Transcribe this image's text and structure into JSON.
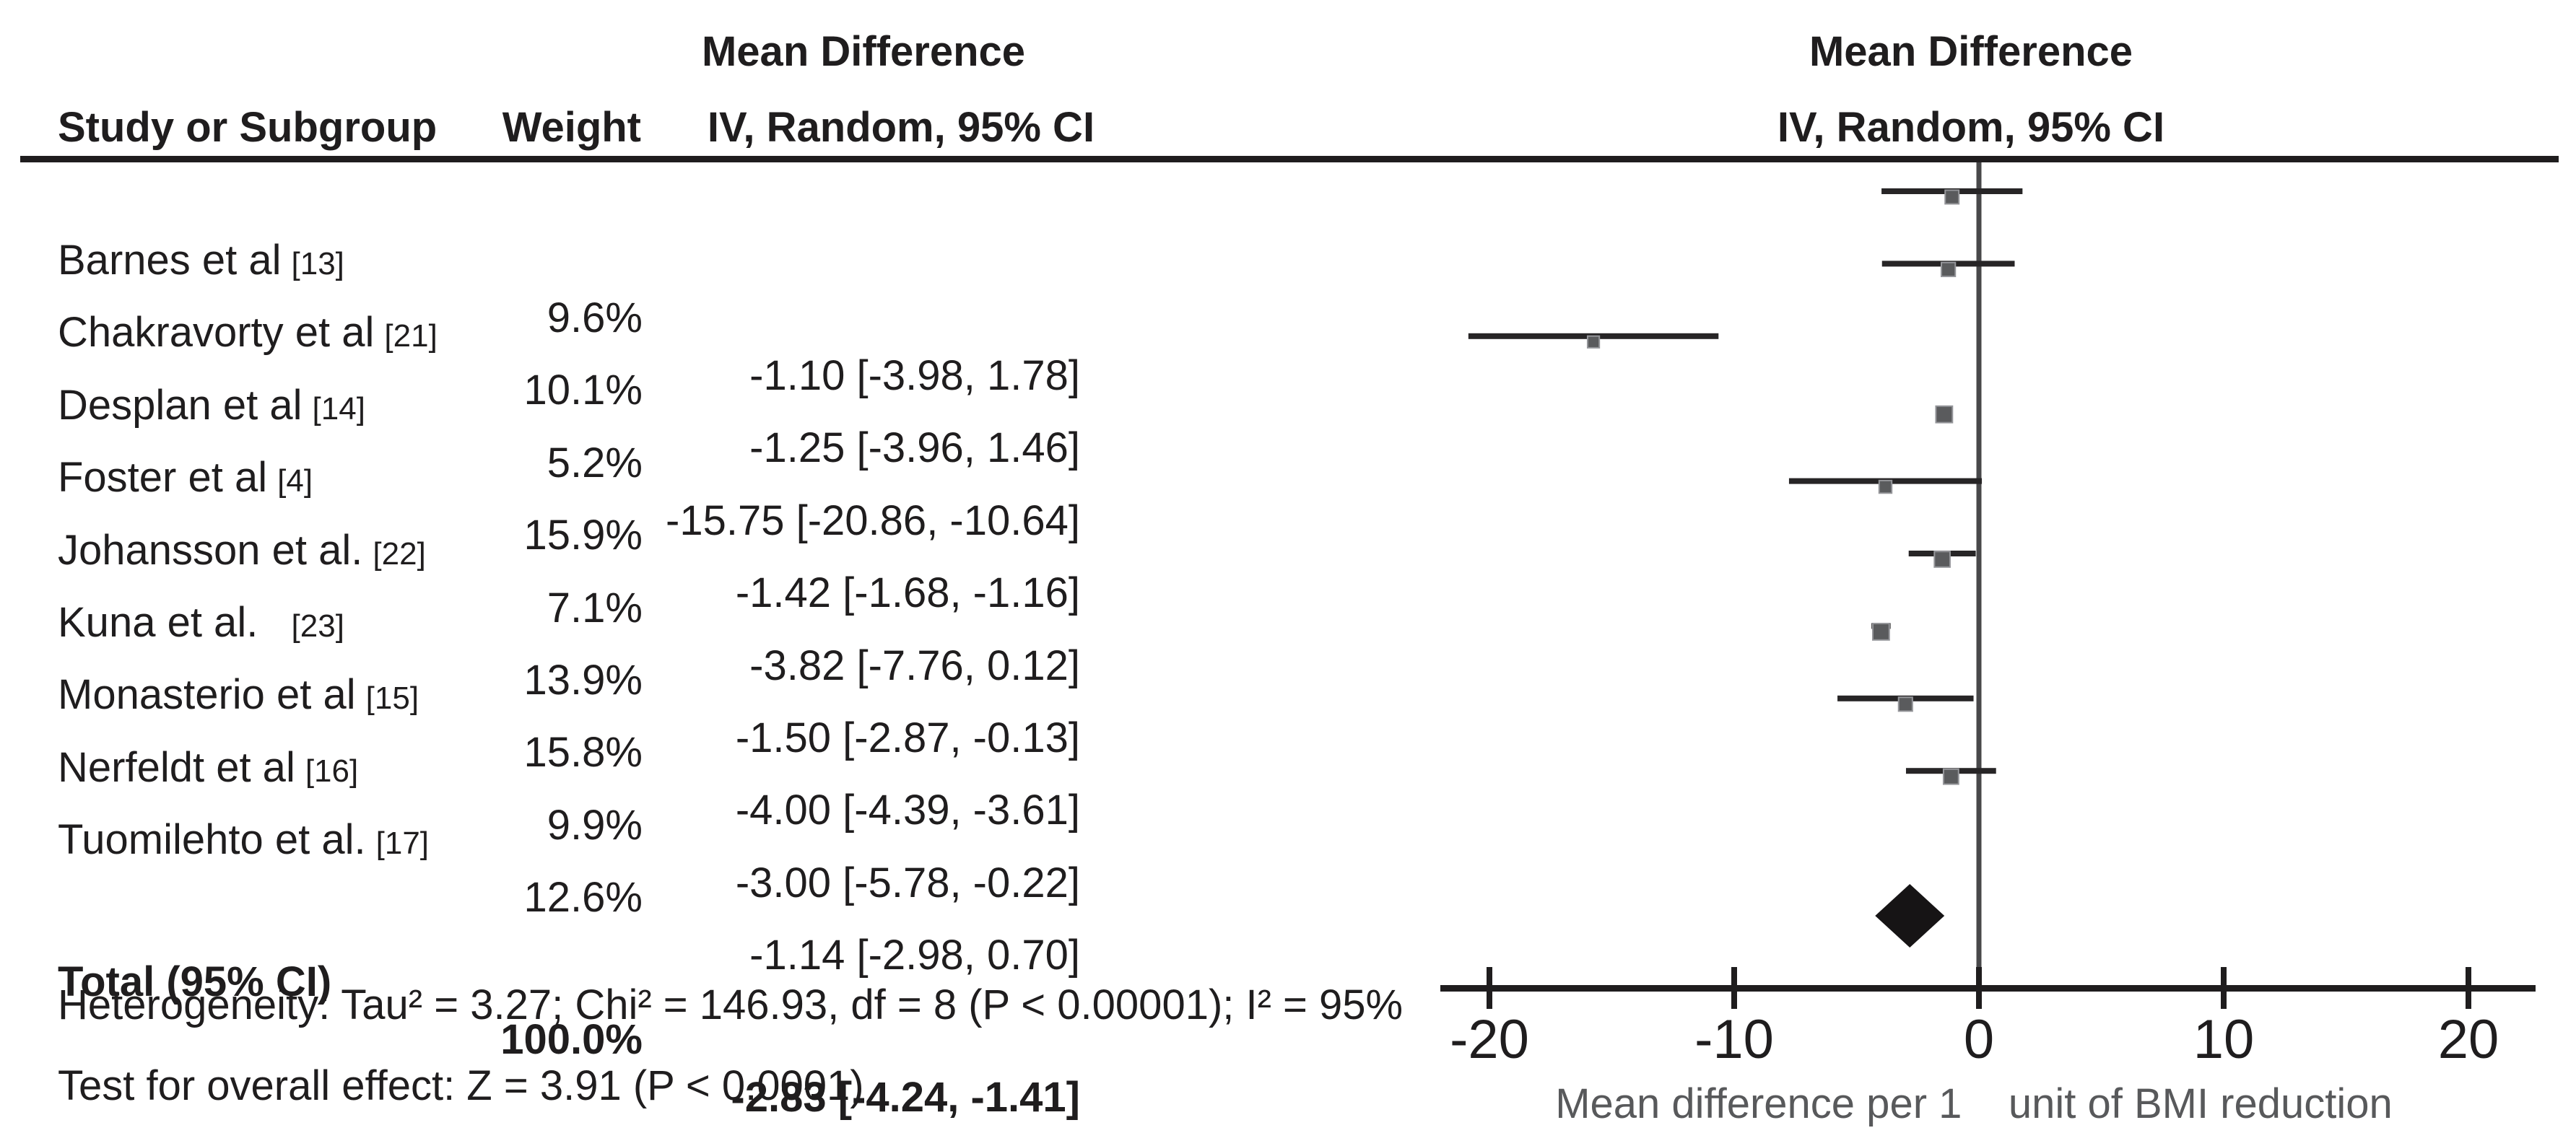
{
  "headers": {
    "left_top": "Mean Difference",
    "study": "Study or Subgroup",
    "weight": "Weight",
    "left_method": "IV, Random, 95% CI",
    "right_top": "Mean Difference",
    "right_method": "IV, Random, 95% CI"
  },
  "chart_data": {
    "type": "forest",
    "effect_measure": "Mean Difference",
    "model": "IV, Random, 95% CI",
    "studies": [
      {
        "name": "Barnes et al",
        "ref": "[13]",
        "weight": "9.6%",
        "weight_value": 9.6,
        "mean": -1.1,
        "ci_low": -3.98,
        "ci_high": 1.78,
        "ci_text": "-1.10 [-3.98, 1.78]"
      },
      {
        "name": "Chakravorty et al",
        "ref": "[21]",
        "weight": "10.1%",
        "weight_value": 10.1,
        "mean": -1.25,
        "ci_low": -3.96,
        "ci_high": 1.46,
        "ci_text": "-1.25 [-3.96, 1.46]"
      },
      {
        "name": "Desplan et al",
        "ref": "[14]",
        "weight": "5.2%",
        "weight_value": 5.2,
        "mean": -15.75,
        "ci_low": -20.86,
        "ci_high": -10.64,
        "ci_text": "-15.75 [-20.86, -10.64]"
      },
      {
        "name": "Foster et al",
        "ref": "[4]",
        "weight": "15.9%",
        "weight_value": 15.9,
        "mean": -1.42,
        "ci_low": -1.68,
        "ci_high": -1.16,
        "ci_text": "-1.42 [-1.68, -1.16]"
      },
      {
        "name": "Johansson et al.",
        "ref": "[22]",
        "weight": "7.1%",
        "weight_value": 7.1,
        "mean": -3.82,
        "ci_low": -7.76,
        "ci_high": 0.12,
        "ci_text": "-3.82 [-7.76, 0.12]"
      },
      {
        "name": "Kuna et al.  ",
        "ref": "[23]",
        "weight": "13.9%",
        "weight_value": 13.9,
        "mean": -1.5,
        "ci_low": -2.87,
        "ci_high": -0.13,
        "ci_text": "-1.50 [-2.87, -0.13]"
      },
      {
        "name": "Monasterio et al",
        "ref": "[15]",
        "weight": "15.8%",
        "weight_value": 15.8,
        "mean": -4.0,
        "ci_low": -4.39,
        "ci_high": -3.61,
        "ci_text": "-4.00 [-4.39, -3.61]"
      },
      {
        "name": "Nerfeldt et al",
        "ref": "[16]",
        "weight": "9.9%",
        "weight_value": 9.9,
        "mean": -3.0,
        "ci_low": -5.78,
        "ci_high": -0.22,
        "ci_text": "-3.00 [-5.78, -0.22]"
      },
      {
        "name": "Tuomilehto et al.",
        "ref": "[17]",
        "weight": "12.6%",
        "weight_value": 12.6,
        "mean": -1.14,
        "ci_low": -2.98,
        "ci_high": 0.7,
        "ci_text": "-1.14 [-2.98, 0.70]"
      }
    ],
    "total": {
      "label": "Total (95% CI)",
      "weight": "100.0%",
      "mean": -2.83,
      "ci_low": -4.24,
      "ci_high": -1.41,
      "ci_text": "-2.83 [-4.24, -1.41]"
    },
    "x_axis": {
      "ticks": [
        -20,
        -10,
        0,
        10,
        20
      ],
      "range": [
        -22,
        22.7
      ],
      "caption": "Mean difference per 1    unit of BMI reduction"
    },
    "heterogeneity": "Heterogeneity: Tau² = 3.27; Chi² = 146.93, df = 8 (P < 0.00001); I² = 95%",
    "overall_effect": "Test for overall effect: Z = 3.91 (P < 0.0001)"
  },
  "colors": {
    "text": "#1f1d1e",
    "ci_line": "#272526",
    "square": "#5a5b5d",
    "square_border": "#95969a",
    "zero_line": "#48484a",
    "axis": "#1f1d1e",
    "diamond": "#161415",
    "caption": "#58595b"
  }
}
